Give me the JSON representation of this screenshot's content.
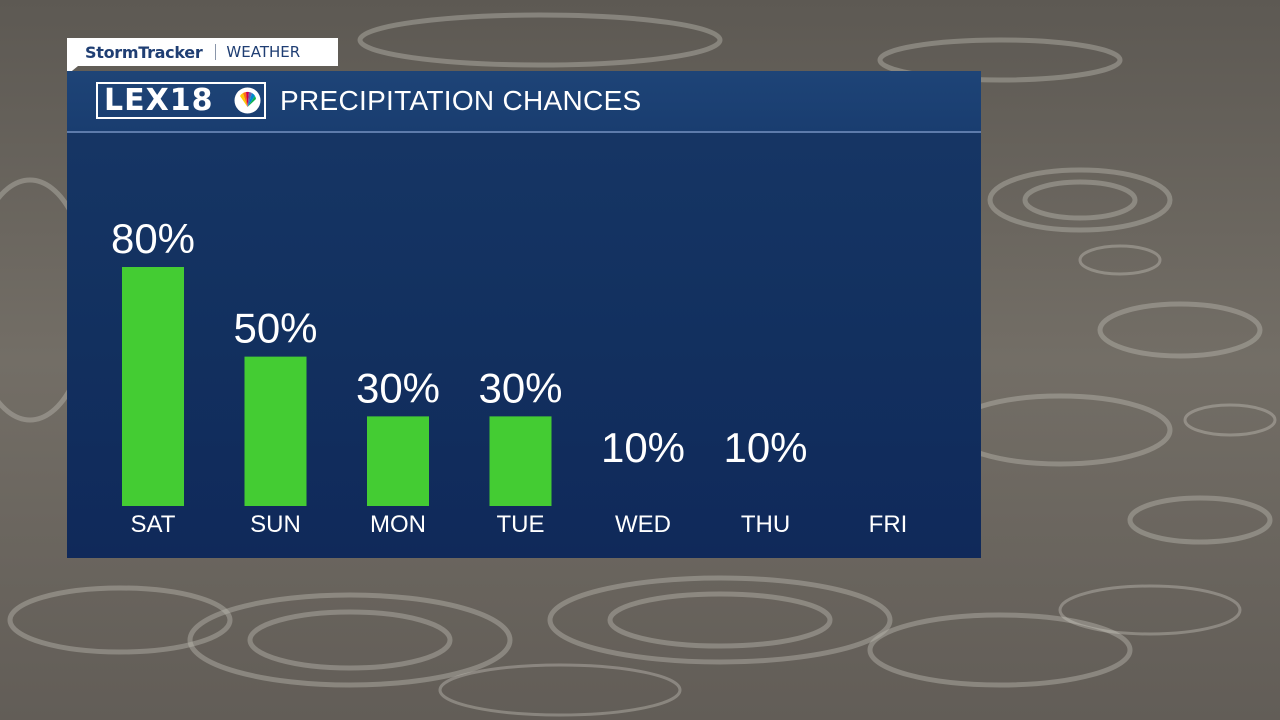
{
  "tag": {
    "brand": "StormTracker",
    "section": "WEATHER"
  },
  "logo": {
    "text": "LEX18"
  },
  "chart_data": {
    "type": "bar",
    "title": "PRECIPITATION CHANCES",
    "categories": [
      "SAT",
      "SUN",
      "MON",
      "TUE",
      "WED",
      "THU",
      "FRI"
    ],
    "values": [
      80,
      50,
      30,
      30,
      10,
      10,
      0
    ],
    "value_labels": [
      "80%",
      "50%",
      "30%",
      "30%",
      "10%",
      "10%",
      ""
    ],
    "ylim": [
      0,
      100
    ],
    "grid": false,
    "bar_color": "#44cc33"
  },
  "colors": {
    "panel": "#13305f",
    "header": "#1e4477",
    "brand_text": "#1f3e73"
  }
}
